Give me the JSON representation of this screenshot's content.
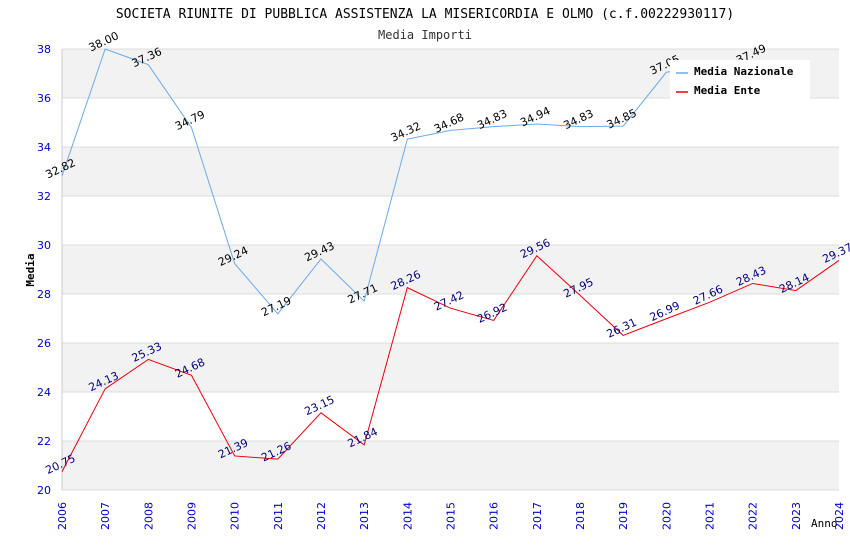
{
  "chart_data": {
    "type": "line",
    "title": "SOCIETA RIUNITE DI PUBBLICA ASSISTENZA LA MISERICORDIA E OLMO (c.f.00222930117)",
    "subtitle": "Media Importi",
    "xlabel": "Anno",
    "ylabel": "Media",
    "x": [
      "2006",
      "2007",
      "2008",
      "2009",
      "2010",
      "2011",
      "2012",
      "2013",
      "2014",
      "2015",
      "2016",
      "2017",
      "2018",
      "2019",
      "2020",
      "2021",
      "2022",
      "2023",
      "2024"
    ],
    "ylim": [
      20,
      38
    ],
    "yticks": [
      "20",
      "22",
      "24",
      "26",
      "28",
      "30",
      "32",
      "34",
      "36",
      "38"
    ],
    "grid": true,
    "legend_position": "top-right",
    "series": [
      {
        "name": "Media Nazionale",
        "color": "#6aaae8",
        "label_color": "#000000",
        "x": [
          "2006",
          "2007",
          "2008",
          "2009",
          "2010",
          "2011",
          "2012",
          "2013",
          "2014",
          "2015",
          "2016",
          "2017",
          "2018",
          "2019",
          "2020",
          "2022"
        ],
        "values": [
          32.82,
          38.0,
          37.36,
          34.79,
          29.24,
          27.19,
          29.43,
          27.71,
          34.32,
          34.68,
          34.83,
          34.94,
          34.83,
          34.85,
          37.05,
          37.49
        ],
        "labels": [
          "32.82",
          "38.00",
          "37.36",
          "34.79",
          "29.24",
          "27.19",
          "29.43",
          "27.71",
          "34.32",
          "34.68",
          "34.83",
          "34.94",
          "34.83",
          "34.85",
          "37.05",
          "37.49"
        ]
      },
      {
        "name": "Media Ente",
        "color": "#e8000b",
        "label_color": "#000080",
        "x": [
          "2006",
          "2007",
          "2008",
          "2009",
          "2010",
          "2011",
          "2012",
          "2013",
          "2014",
          "2015",
          "2016",
          "2017",
          "2018",
          "2019",
          "2020",
          "2021",
          "2022",
          "2023",
          "2024"
        ],
        "values": [
          20.75,
          24.13,
          25.33,
          24.68,
          21.39,
          21.26,
          23.15,
          21.84,
          28.26,
          27.42,
          26.92,
          29.56,
          27.95,
          26.31,
          26.99,
          27.66,
          28.43,
          28.14,
          29.37
        ],
        "labels": [
          "20.75",
          "24.13",
          "25.33",
          "24.68",
          "21.39",
          "21.26",
          "23.15",
          "21.84",
          "28.26",
          "27.42",
          "26.92",
          "29.56",
          "27.95",
          "26.31",
          "26.99",
          "27.66",
          "28.43",
          "28.14",
          "29.37"
        ]
      }
    ]
  }
}
